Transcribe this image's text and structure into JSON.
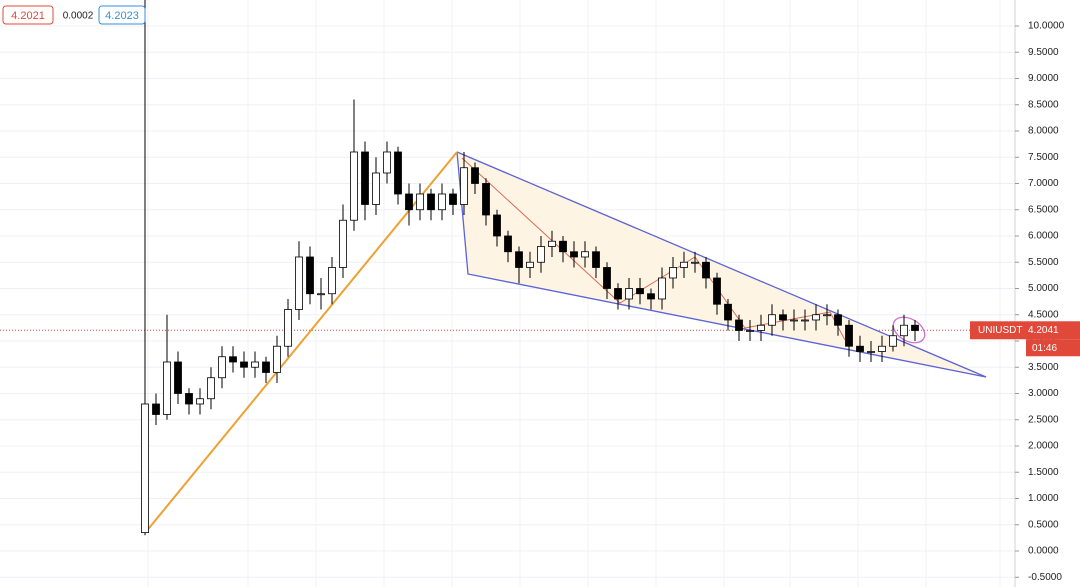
{
  "chart_data": {
    "type": "candlestick",
    "header": {
      "bid": 4.2021,
      "spread": 0.0002,
      "ask": 4.2023
    },
    "up_color": "#ffffff",
    "down_color": "#000000",
    "open": [
      0.35,
      2.8,
      2.6,
      3.6,
      3.0,
      2.8,
      2.9,
      3.3,
      3.7,
      3.6,
      3.5,
      3.6,
      3.4,
      3.9,
      4.6,
      5.6,
      4.9,
      4.9,
      5.4,
      6.3,
      7.6,
      6.6,
      7.2,
      7.6,
      6.8,
      6.5,
      6.8,
      6.5,
      6.8,
      6.6,
      7.3,
      7.0,
      6.4,
      6.0,
      5.7,
      5.4,
      5.5,
      5.8,
      5.9,
      5.7,
      5.6,
      5.7,
      5.4,
      5.0,
      4.8,
      5.0,
      4.9,
      4.8,
      5.2,
      5.4,
      5.5,
      5.5,
      5.2,
      4.7,
      4.4,
      4.2,
      4.2,
      4.3,
      4.5,
      4.4,
      4.4,
      4.4,
      4.5,
      4.5,
      4.3,
      3.9,
      3.8,
      3.8,
      3.9,
      4.1,
      4.3
    ],
    "high": [
      10.5,
      3.0,
      4.5,
      3.8,
      3.1,
      3.1,
      3.5,
      3.9,
      3.9,
      3.8,
      3.8,
      3.7,
      4.1,
      4.8,
      5.9,
      5.8,
      5.2,
      5.6,
      6.6,
      8.6,
      7.8,
      7.5,
      7.8,
      7.7,
      7.0,
      7.0,
      6.9,
      7.0,
      6.9,
      7.6,
      7.4,
      7.1,
      6.5,
      6.1,
      5.8,
      5.7,
      6.0,
      6.1,
      6.0,
      5.9,
      5.9,
      5.8,
      5.5,
      5.1,
      5.2,
      5.2,
      5.0,
      5.4,
      5.6,
      5.7,
      5.7,
      5.6,
      5.3,
      4.8,
      4.5,
      4.4,
      4.5,
      4.7,
      4.6,
      4.6,
      4.6,
      4.7,
      4.7,
      4.6,
      4.4,
      4.1,
      4.0,
      4.1,
      4.3,
      4.5,
      4.4
    ],
    "low": [
      0.3,
      2.4,
      2.5,
      2.8,
      2.6,
      2.6,
      2.7,
      3.1,
      3.4,
      3.3,
      3.3,
      3.2,
      3.2,
      3.7,
      4.4,
      4.7,
      4.6,
      4.7,
      5.2,
      6.1,
      6.3,
      6.4,
      7.0,
      6.6,
      6.2,
      6.3,
      6.3,
      6.3,
      6.4,
      6.4,
      6.8,
      6.2,
      5.8,
      5.5,
      5.1,
      5.2,
      5.3,
      5.6,
      5.5,
      5.4,
      5.4,
      5.2,
      4.8,
      4.6,
      4.6,
      4.7,
      4.6,
      4.6,
      5.0,
      5.2,
      5.3,
      5.0,
      4.5,
      4.2,
      4.0,
      4.0,
      4.0,
      4.1,
      4.2,
      4.2,
      4.2,
      4.2,
      4.3,
      4.1,
      3.7,
      3.6,
      3.6,
      3.6,
      3.8,
      3.9,
      4.0
    ],
    "close": [
      2.8,
      2.6,
      3.6,
      3.0,
      2.8,
      2.9,
      3.3,
      3.7,
      3.6,
      3.5,
      3.6,
      3.4,
      3.9,
      4.6,
      5.6,
      4.9,
      4.9,
      5.4,
      6.3,
      7.6,
      6.6,
      7.2,
      7.6,
      6.8,
      6.5,
      6.8,
      6.5,
      6.8,
      6.6,
      7.3,
      7.0,
      6.4,
      6.0,
      5.7,
      5.4,
      5.5,
      5.8,
      5.9,
      5.7,
      5.6,
      5.7,
      5.4,
      5.0,
      4.8,
      5.0,
      4.9,
      4.8,
      5.2,
      5.4,
      5.5,
      5.5,
      5.2,
      4.7,
      4.4,
      4.2,
      4.2,
      4.3,
      4.5,
      4.4,
      4.4,
      4.4,
      4.5,
      4.5,
      4.3,
      3.9,
      3.8,
      3.8,
      3.9,
      4.1,
      4.3,
      4.2
    ],
    "price_line": {
      "symbol": "UNIUSDT",
      "value": 4.2041,
      "countdown": "01:46",
      "color": "#e0483a"
    },
    "ylim": [
      -0.686,
      10.495
    ],
    "yticks": [
      {
        "value": -0.5,
        "label": "-0.5000"
      },
      {
        "value": 0,
        "label": "0.0000"
      },
      {
        "value": 0.5,
        "label": "0.5000"
      },
      {
        "value": 1,
        "label": "1.0000"
      },
      {
        "value": 1.5,
        "label": "1.5000"
      },
      {
        "value": 2,
        "label": "2.0000"
      },
      {
        "value": 2.5,
        "label": "2.5000"
      },
      {
        "value": 3,
        "label": "3.0000"
      },
      {
        "value": 3.5,
        "label": "3.5000"
      },
      {
        "value": 4,
        "label": "4.0000"
      },
      {
        "value": 4.5,
        "label": "4.5000"
      },
      {
        "value": 5,
        "label": "5.0000"
      },
      {
        "value": 5.5,
        "label": "5.5000"
      },
      {
        "value": 6,
        "label": "6.0000"
      },
      {
        "value": 6.5,
        "label": "6.5000"
      },
      {
        "value": 7,
        "label": "7.0000"
      },
      {
        "value": 7.5,
        "label": "7.5000"
      },
      {
        "value": 8,
        "label": "8.0000"
      },
      {
        "value": 8.5,
        "label": "8.5000"
      },
      {
        "value": 9,
        "label": "9.0000"
      },
      {
        "value": 9.5,
        "label": "9.5000"
      },
      {
        "value": 10,
        "label": "10.0000"
      }
    ],
    "grid": true
  }
}
